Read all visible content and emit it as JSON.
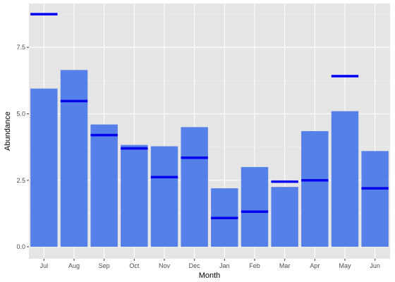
{
  "chart_data": {
    "type": "bar",
    "xlabel": "Month",
    "ylabel": "Abundance",
    "categories": [
      "Jul",
      "Aug",
      "Sep",
      "Oct",
      "Nov",
      "Dec",
      "Jan",
      "Feb",
      "Mar",
      "Apr",
      "May",
      "Jun"
    ],
    "values": [
      5.95,
      6.65,
      4.6,
      3.83,
      3.78,
      4.5,
      2.2,
      3.0,
      2.25,
      4.35,
      5.1,
      3.6
    ],
    "markers": [
      8.75,
      5.48,
      4.2,
      3.7,
      2.62,
      3.35,
      1.08,
      1.32,
      2.45,
      2.5,
      6.42,
      2.2
    ],
    "ylim": [
      -0.45,
      9.15
    ],
    "yticks": [
      0.0,
      2.5,
      5.0,
      7.5
    ],
    "ytick_labels": [
      "0.0",
      "2.5",
      "5.0",
      "7.5"
    ],
    "grid": true,
    "colors": {
      "bar": "#5580EA",
      "marker": "#0000F0",
      "panel": "#E5E5E5",
      "grid_major": "#FFFFFF",
      "grid_minor": "#F2F2F2"
    }
  }
}
